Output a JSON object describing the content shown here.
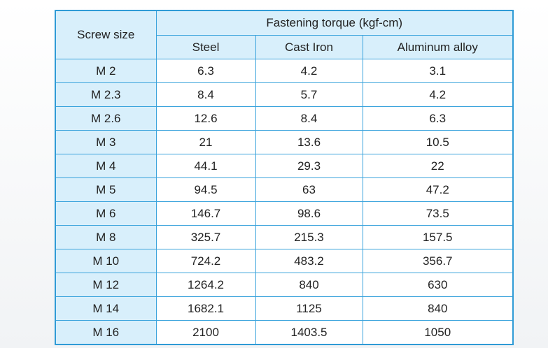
{
  "table": {
    "header": {
      "first": "Screw size",
      "group": "Fastening torque (kgf-cm)",
      "columns": [
        "Steel",
        "Cast Iron",
        "Aluminum alloy"
      ]
    },
    "rows": [
      [
        "M 2",
        "6.3",
        "4.2",
        "3.1"
      ],
      [
        "M 2.3",
        "8.4",
        "5.7",
        "4.2"
      ],
      [
        "M 2.6",
        "12.6",
        "8.4",
        "6.3"
      ],
      [
        "M 3",
        "21",
        "13.6",
        "10.5"
      ],
      [
        "M 4",
        "44.1",
        "29.3",
        "22"
      ],
      [
        "M 5",
        "94.5",
        "63",
        "47.2"
      ],
      [
        "M 6",
        "146.7",
        "98.6",
        "73.5"
      ],
      [
        "M 8",
        "325.7",
        "215.3",
        "157.5"
      ],
      [
        "M 10",
        "724.2",
        "483.2",
        "356.7"
      ],
      [
        "M 12",
        "1264.2",
        "840",
        "630"
      ],
      [
        "M 14",
        "1682.1",
        "1125",
        "840"
      ],
      [
        "M 16",
        "2100",
        "1403.5",
        "1050"
      ]
    ]
  }
}
